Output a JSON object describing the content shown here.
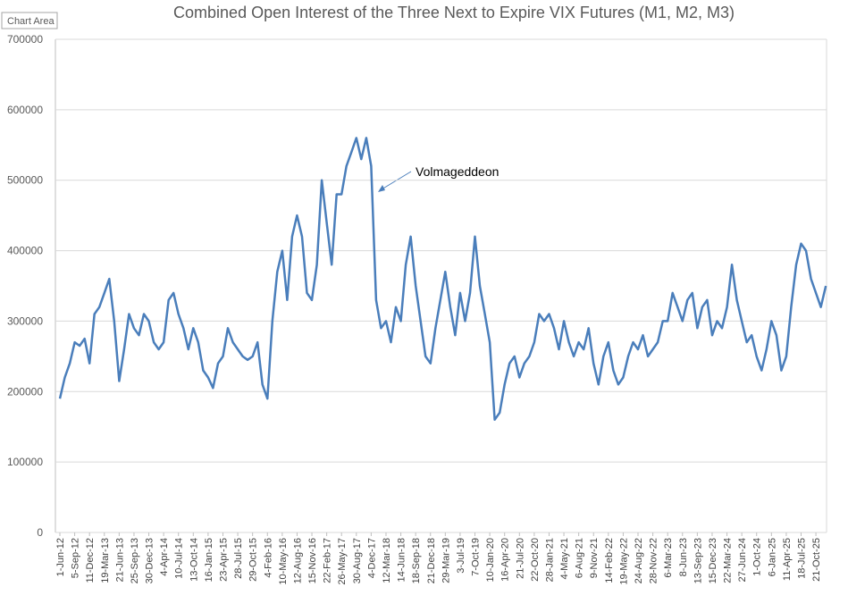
{
  "chart_data": {
    "type": "line",
    "title": "Combined Open Interest of the Three Next to Expire VIX Futures (M1, M2, M3)",
    "tooltip": "Chart Area",
    "annotation": "Volmageddeon",
    "categories": [
      "1-Jun-12",
      null,
      null,
      "5-Sep-12",
      null,
      null,
      "11-Dec-12",
      null,
      null,
      "19-Mar-13",
      null,
      null,
      "21-Jun-13",
      null,
      null,
      "25-Sep-13",
      null,
      null,
      "30-Dec-13",
      null,
      null,
      "4-Apr-14",
      null,
      null,
      "10-Jul-14",
      null,
      null,
      "13-Oct-14",
      null,
      null,
      "16-Jan-15",
      null,
      null,
      "23-Apr-15",
      null,
      null,
      "28-Jul-15",
      null,
      null,
      "29-Oct-15",
      null,
      null,
      "4-Feb-16",
      null,
      null,
      "10-May-16",
      null,
      null,
      "12-Aug-16",
      null,
      null,
      "15-Nov-16",
      null,
      null,
      "22-Feb-17",
      null,
      null,
      "26-May-17",
      null,
      null,
      "30-Aug-17",
      null,
      null,
      "4-Dec-17",
      null,
      null,
      "12-Mar-18",
      null,
      null,
      "14-Jun-18",
      null,
      null,
      "18-Sep-18",
      null,
      null,
      "21-Dec-18",
      null,
      null,
      "29-Mar-19",
      null,
      null,
      "3-Jul-19",
      null,
      null,
      "7-Oct-19",
      null,
      null,
      "10-Jan-20",
      null,
      null,
      "16-Apr-20",
      null,
      null,
      "21-Jul-20",
      null,
      null,
      "22-Oct-20",
      null,
      null,
      "28-Jan-21",
      null,
      null,
      "4-May-21",
      null,
      null,
      "6-Aug-21",
      null,
      null,
      "9-Nov-21",
      null,
      null,
      "14-Feb-22",
      null,
      null,
      "19-May-22",
      null,
      null,
      "24-Aug-22",
      null,
      null,
      "28-Nov-22",
      null,
      null,
      "6-Mar-23",
      null,
      null,
      "8-Jun-23",
      null,
      null,
      "13-Sep-23",
      null,
      null,
      "15-Dec-23",
      null,
      null,
      "22-Mar-24",
      null,
      null,
      "27-Jun-24",
      null,
      null,
      "1-Oct-24",
      null,
      null,
      "6-Jan-25",
      null,
      null,
      "11-Apr-25",
      null,
      null,
      "18-Jul-25",
      null,
      null,
      "21-Oct-25",
      null,
      null
    ],
    "series": [
      {
        "name": "Combined Open Interest",
        "color": "#4a7ebb",
        "values": [
          190000,
          220000,
          240000,
          270000,
          265000,
          275000,
          240000,
          310000,
          320000,
          340000,
          360000,
          300000,
          215000,
          260000,
          310000,
          290000,
          280000,
          310000,
          300000,
          270000,
          260000,
          270000,
          330000,
          340000,
          310000,
          290000,
          260000,
          290000,
          270000,
          230000,
          220000,
          205000,
          240000,
          250000,
          290000,
          270000,
          260000,
          250000,
          245000,
          250000,
          270000,
          210000,
          190000,
          300000,
          370000,
          400000,
          330000,
          420000,
          450000,
          420000,
          340000,
          330000,
          380000,
          500000,
          440000,
          380000,
          480000,
          480000,
          520000,
          540000,
          560000,
          530000,
          560000,
          520000,
          330000,
          290000,
          300000,
          270000,
          320000,
          300000,
          380000,
          420000,
          350000,
          300000,
          250000,
          240000,
          290000,
          330000,
          370000,
          320000,
          280000,
          340000,
          300000,
          340000,
          420000,
          350000,
          310000,
          270000,
          160000,
          170000,
          210000,
          240000,
          250000,
          220000,
          240000,
          250000,
          270000,
          310000,
          300000,
          310000,
          290000,
          260000,
          300000,
          270000,
          250000,
          270000,
          260000,
          290000,
          240000,
          210000,
          250000,
          270000,
          230000,
          210000,
          220000,
          250000,
          270000,
          260000,
          280000,
          250000,
          260000,
          270000,
          300000,
          300000,
          340000,
          320000,
          300000,
          330000,
          340000,
          290000,
          320000,
          330000,
          280000,
          300000,
          290000,
          320000,
          380000,
          330000,
          300000,
          270000,
          280000,
          250000,
          230000,
          260000,
          300000,
          280000,
          230000,
          250000,
          320000,
          380000,
          410000,
          400000,
          360000,
          340000,
          320000,
          350000
        ]
      }
    ],
    "ylim": [
      0,
      700000
    ],
    "yticks": [
      0,
      100000,
      200000,
      300000,
      400000,
      500000,
      600000,
      700000
    ],
    "grid": true
  }
}
